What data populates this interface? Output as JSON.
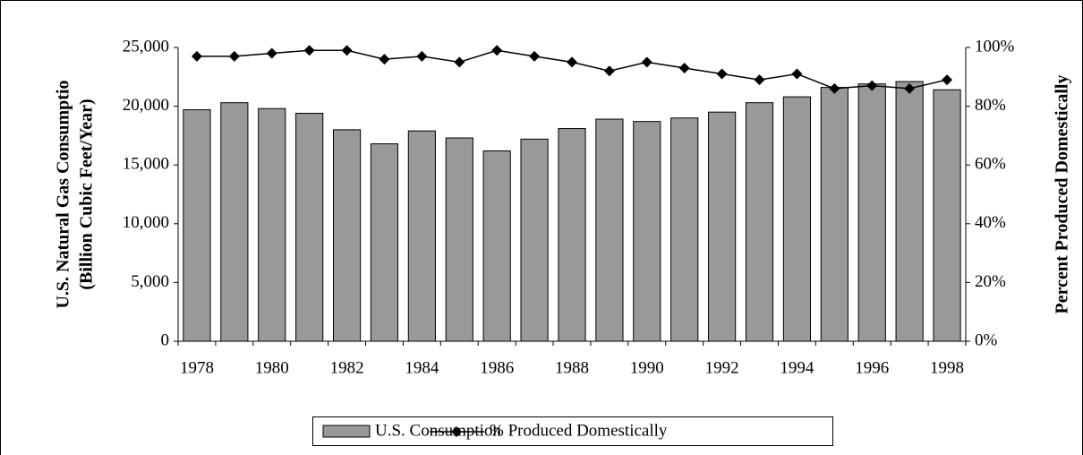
{
  "chart_data": {
    "type": "bar",
    "y_label_lines": [
      "U.S. Natural Gas Consumptio",
      "(Billion Cubic Feet/Year)"
    ],
    "y2_label": "Percent Produced Domestically",
    "categories": [
      "1978",
      null,
      "1980",
      null,
      "1982",
      null,
      "1984",
      null,
      "1986",
      null,
      "1988",
      null,
      "1990",
      null,
      "1992",
      null,
      "1994",
      null,
      "1996",
      null,
      "1998"
    ],
    "series": [
      {
        "name": "U.S. Consumption",
        "color": "#999999",
        "values": [
          19700,
          20300,
          19800,
          19400,
          18000,
          16800,
          17900,
          17300,
          16200,
          17200,
          18100,
          18900,
          18700,
          19000,
          19500,
          20300,
          20800,
          21600,
          21900,
          22100,
          21400
        ]
      },
      {
        "name": "% Produced Domestically",
        "color": "#000000",
        "axis": "y2",
        "type": "line",
        "values": [
          97,
          97,
          98,
          99,
          99,
          96,
          97,
          95,
          99,
          97,
          95,
          92,
          95,
          93,
          91,
          89,
          91,
          86,
          87,
          86,
          89
        ]
      }
    ],
    "ylim": [
      0,
      25000
    ],
    "yticks": [
      0,
      {
        "value": 5000,
        "label": "5,000"
      },
      {
        "value": 10000,
        "label": "10,000"
      },
      {
        "value": 15000,
        "label": "15,000"
      },
      {
        "value": 20000,
        "label": "20,000"
      },
      {
        "value": 25000,
        "label": "25,000"
      }
    ],
    "y2lim": [
      0,
      100
    ],
    "y2ticks": [
      {
        "value": 0,
        "label": "0%"
      },
      {
        "value": 20,
        "label": "20%"
      },
      {
        "value": 40,
        "label": "40%"
      },
      {
        "value": 60,
        "label": "60%"
      },
      {
        "value": 80,
        "label": "80%"
      },
      {
        "value": 100,
        "label": "100%"
      }
    ],
    "grid": false,
    "legend": "bottom"
  }
}
